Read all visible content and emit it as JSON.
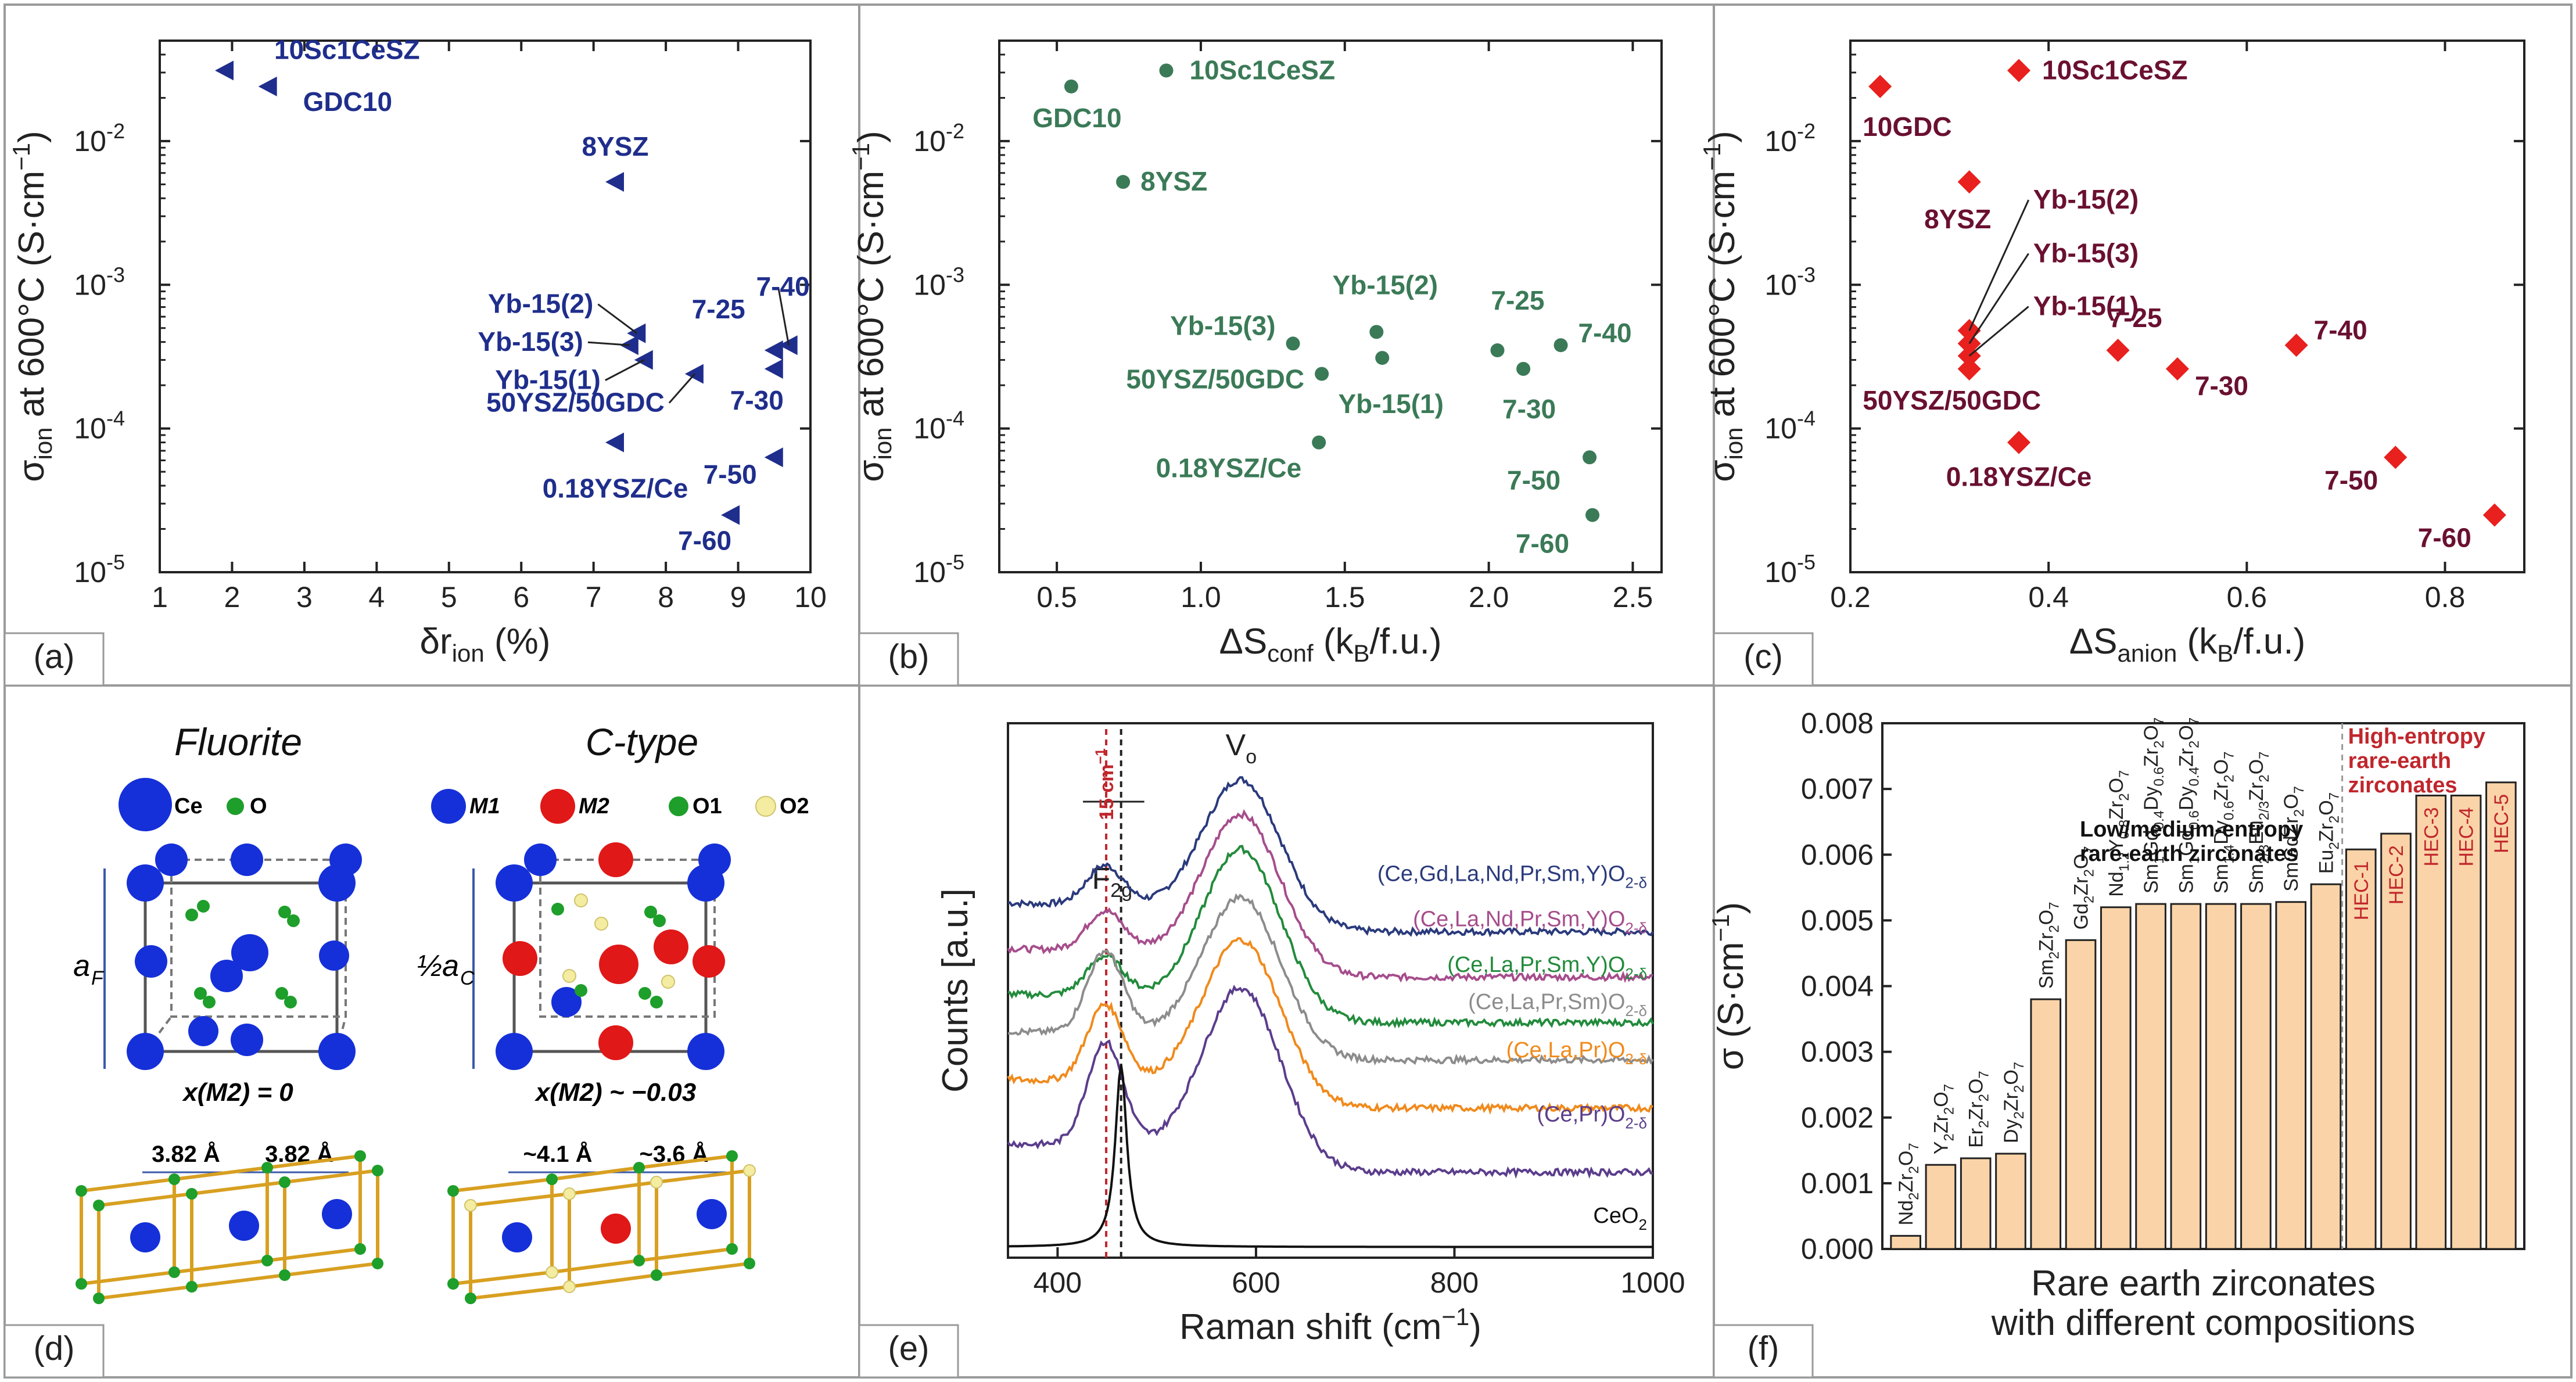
{
  "chart_data": [
    {
      "panel": "(a)",
      "type": "scatter",
      "marker": "triangle-left",
      "color": "#1f2e8c",
      "xlabel": "δr",
      "xlabel_sub": "ion",
      "xlabel_unit": " (%)",
      "ylabel": "σ",
      "ylabel_sub": "ion",
      "ylabel_rest": " at 600°C (S·cm",
      "ylabel_sup": "−1",
      "ylabel_end": ")",
      "xlim": [
        1,
        10
      ],
      "ylim": [
        1e-05,
        0.05
      ],
      "yscale": "log",
      "xticks": [
        "1",
        "2",
        "3",
        "4",
        "5",
        "6",
        "7",
        "8",
        "9",
        "10"
      ],
      "yticks": [
        {
          "base": "10",
          "exp": "-2"
        },
        {
          "base": "10",
          "exp": "-3"
        },
        {
          "base": "10",
          "exp": "-4"
        },
        {
          "base": "10",
          "exp": "-5"
        }
      ],
      "points": [
        {
          "label": "10Sc1CeSZ",
          "x": 1.9,
          "y": 0.031
        },
        {
          "label": "GDC10",
          "x": 2.5,
          "y": 0.024
        },
        {
          "label": "8YSZ",
          "x": 7.3,
          "y": 0.0052
        },
        {
          "label": "Yb-15(2)",
          "x": 7.6,
          "y": 0.00046
        },
        {
          "label": "Yb-15(3)",
          "x": 7.5,
          "y": 0.00038
        },
        {
          "label": "Yb-15(1)",
          "x": 7.7,
          "y": 0.0003
        },
        {
          "label": "50YSZ/50GDC",
          "x": 8.4,
          "y": 0.00024
        },
        {
          "label": "0.18YSZ/Ce",
          "x": 7.3,
          "y": 8e-05
        },
        {
          "label": "7-40",
          "x": 9.7,
          "y": 0.00038
        },
        {
          "label": "7-25",
          "x": 9.5,
          "y": 0.00035
        },
        {
          "label": "7-30",
          "x": 9.5,
          "y": 0.00026
        },
        {
          "label": "7-50",
          "x": 9.5,
          "y": 6.3e-05
        },
        {
          "label": "7-60",
          "x": 8.9,
          "y": 2.5e-05
        }
      ]
    },
    {
      "panel": "(b)",
      "type": "scatter",
      "marker": "circle",
      "color": "#3b7a57",
      "xlabel": "ΔS",
      "xlabel_sub": "conf",
      "xlabel_unit": " (k",
      "xlabel_sub2": "B",
      "xlabel_end": "/f.u.)",
      "ylabel": "σ",
      "ylabel_sub": "ion",
      "ylabel_rest": " at 600°C (S·cm",
      "ylabel_sup": "−1",
      "ylabel_end": ")",
      "xlim": [
        0.3,
        2.6
      ],
      "ylim": [
        1e-05,
        0.05
      ],
      "yscale": "log",
      "xticks": [
        "0.5",
        "1.0",
        "1.5",
        "2.0",
        "2.5"
      ],
      "yticks": [
        {
          "base": "10",
          "exp": "-2"
        },
        {
          "base": "10",
          "exp": "-3"
        },
        {
          "base": "10",
          "exp": "-4"
        },
        {
          "base": "10",
          "exp": "-5"
        }
      ],
      "points": [
        {
          "label": "GDC10",
          "x": 0.55,
          "y": 0.024
        },
        {
          "label": "10Sc1CeSZ",
          "x": 0.88,
          "y": 0.031
        },
        {
          "label": "8YSZ",
          "x": 0.73,
          "y": 0.0052
        },
        {
          "label": "Yb-15(3)",
          "x": 1.32,
          "y": 0.00039
        },
        {
          "label": "Yb-15(2)",
          "x": 1.61,
          "y": 0.00047
        },
        {
          "label": "Yb-15(1)",
          "x": 1.63,
          "y": 0.00031
        },
        {
          "label": "50YSZ/50GDC",
          "x": 1.42,
          "y": 0.00024
        },
        {
          "label": "0.18YSZ/Ce",
          "x": 1.41,
          "y": 8e-05
        },
        {
          "label": "7-25",
          "x": 2.03,
          "y": 0.00035
        },
        {
          "label": "7-40",
          "x": 2.25,
          "y": 0.00038
        },
        {
          "label": "7-30",
          "x": 2.12,
          "y": 0.00026
        },
        {
          "label": "7-50",
          "x": 2.35,
          "y": 6.3e-05
        },
        {
          "label": "7-60",
          "x": 2.36,
          "y": 2.5e-05
        }
      ]
    },
    {
      "panel": "(c)",
      "type": "scatter",
      "marker": "diamond",
      "color": "#e8201e",
      "xlabel": "ΔS",
      "xlabel_sub": "anion",
      "xlabel_unit": " (k",
      "xlabel_sub2": "B",
      "xlabel_end": "/f.u.)",
      "ylabel": "σ",
      "ylabel_sub": "ion",
      "ylabel_rest": " at 600°C (S·cm",
      "ylabel_sup": "−1",
      "ylabel_end": ")",
      "xlim": [
        0.2,
        0.88
      ],
      "ylim": [
        1e-05,
        0.05
      ],
      "yscale": "log",
      "xticks": [
        "0.2",
        "0.4",
        "0.6",
        "0.8"
      ],
      "yticks": [
        {
          "base": "10",
          "exp": "-2"
        },
        {
          "base": "10",
          "exp": "-3"
        },
        {
          "base": "10",
          "exp": "-4"
        },
        {
          "base": "10",
          "exp": "-5"
        }
      ],
      "points": [
        {
          "label": "10GDC",
          "x": 0.23,
          "y": 0.024
        },
        {
          "label": "10Sc1CeSZ",
          "x": 0.37,
          "y": 0.031
        },
        {
          "label": "8YSZ",
          "x": 0.32,
          "y": 0.0052
        },
        {
          "label": "Yb-15(2)",
          "x": 0.32,
          "y": 0.00048
        },
        {
          "label": "Yb-15(3)",
          "x": 0.32,
          "y": 0.00039
        },
        {
          "label": "Yb-15(1)",
          "x": 0.32,
          "y": 0.00032
        },
        {
          "label": "50YSZ/50GDC",
          "x": 0.32,
          "y": 0.00026
        },
        {
          "label": "0.18YSZ/Ce",
          "x": 0.37,
          "y": 8e-05
        },
        {
          "label": "7-25",
          "x": 0.47,
          "y": 0.00035
        },
        {
          "label": "7-30",
          "x": 0.53,
          "y": 0.00026
        },
        {
          "label": "7-40",
          "x": 0.65,
          "y": 0.00038
        },
        {
          "label": "7-50",
          "x": 0.75,
          "y": 6.3e-05
        },
        {
          "label": "7-60",
          "x": 0.85,
          "y": 2.5e-05
        }
      ]
    },
    {
      "panel": "(e)",
      "type": "line",
      "xlabel": "Raman shift (cm",
      "xlabel_sup": "−1",
      "xlabel_end": ")",
      "ylabel": "Counts [a.u.]",
      "xlim": [
        350,
        1000
      ],
      "xticks": [
        "400",
        "600",
        "800",
        "1000"
      ],
      "peak_labels": {
        "vo": "V",
        "vo_sub": "o",
        "f2g": "F",
        "f2g_sub": "2g",
        "shift": "15 cm",
        "shift_sup": "−1"
      },
      "markers_x": [
        449,
        464
      ],
      "series": [
        {
          "name": "(Ce,Gd,La,Nd,Pr,Sm,Y)O",
          "sub": "2-δ",
          "color": "#2a3a7c",
          "offset": 0.66,
          "amp": 0.28,
          "f2g": 0.07
        },
        {
          "name": "(Ce,La,Nd,Pr,Sm,Y)O",
          "sub": "2-δ",
          "color": "#a64d8c",
          "offset": 0.575,
          "amp": 0.3,
          "f2g": 0.07
        },
        {
          "name": "(Ce,La,Pr,Sm,Y)O",
          "sub": "2-δ",
          "color": "#228b3c",
          "offset": 0.49,
          "amp": 0.32,
          "f2g": 0.07
        },
        {
          "name": "(Ce,La,Pr,Sm)O",
          "sub": "2-δ",
          "color": "#8c8c8c",
          "offset": 0.42,
          "amp": 0.3,
          "f2g": 0.15
        },
        {
          "name": "(Ce,La,Pr)O",
          "sub": "2-δ",
          "color": "#f08a1c",
          "offset": 0.33,
          "amp": 0.31,
          "f2g": 0.14
        },
        {
          "name": "(Ce,Pr)O",
          "sub": "2-δ",
          "color": "#5b3d8c",
          "offset": 0.21,
          "amp": 0.34,
          "f2g": 0.19
        },
        {
          "name": "CeO",
          "sub": "2",
          "color": "#111111",
          "offset": 0.02,
          "amp": 0.0,
          "f2g": 0.55
        }
      ]
    },
    {
      "panel": "(f)",
      "type": "bar",
      "ylabel": "σ (S·cm",
      "ylabel_sup": "−1",
      "ylabel_end": ")",
      "xlabel_lines": [
        "Rare earth zirconates",
        "with different compositions"
      ],
      "ylim": [
        0,
        0.008
      ],
      "yticks": [
        "0.000",
        "0.001",
        "0.002",
        "0.003",
        "0.004",
        "0.005",
        "0.006",
        "0.007",
        "0.008"
      ],
      "group_low": [
        "Low/medium-entropy",
        "rare-earth zirconates"
      ],
      "group_high": [
        "High-entropy",
        "rare-earth",
        "zirconates"
      ],
      "bar_color": "#fad4a8",
      "bars": [
        {
          "parts": [
            [
              "Nd",
              ""
            ],
            [
              "2",
              true
            ],
            [
              "Zr",
              ""
            ],
            [
              "2",
              true
            ],
            [
              "O",
              ""
            ],
            [
              "7",
              true
            ]
          ],
          "value": 0.0002,
          "high": false
        },
        {
          "parts": [
            [
              "Y",
              ""
            ],
            [
              "2",
              true
            ],
            [
              "Zr",
              ""
            ],
            [
              "2",
              true
            ],
            [
              "O",
              ""
            ],
            [
              "7",
              true
            ]
          ],
          "value": 0.00128,
          "high": false
        },
        {
          "parts": [
            [
              "Er",
              ""
            ],
            [
              "2",
              true
            ],
            [
              "Zr",
              ""
            ],
            [
              "2",
              true
            ],
            [
              "O",
              ""
            ],
            [
              "7",
              true
            ]
          ],
          "value": 0.00138,
          "high": false
        },
        {
          "parts": [
            [
              "Dy",
              ""
            ],
            [
              "2",
              true
            ],
            [
              "Zr",
              ""
            ],
            [
              "2",
              true
            ],
            [
              "O",
              ""
            ],
            [
              "7",
              true
            ]
          ],
          "value": 0.00145,
          "high": false
        },
        {
          "parts": [
            [
              "Sm",
              ""
            ],
            [
              "2",
              true
            ],
            [
              "Zr",
              ""
            ],
            [
              "2",
              true
            ],
            [
              "O",
              ""
            ],
            [
              "7",
              true
            ]
          ],
          "value": 0.0038,
          "high": false
        },
        {
          "parts": [
            [
              "Gd",
              ""
            ],
            [
              "2",
              true
            ],
            [
              "Zr",
              ""
            ],
            [
              "2",
              true
            ],
            [
              "O",
              ""
            ],
            [
              "7",
              true
            ]
          ],
          "value": 0.0047,
          "high": false
        },
        {
          "parts": [
            [
              "Nd",
              ""
            ],
            [
              "1.2",
              true
            ],
            [
              "Y",
              ""
            ],
            [
              "0.8",
              true
            ],
            [
              "Zr",
              ""
            ],
            [
              "2",
              true
            ],
            [
              "O",
              ""
            ],
            [
              "7",
              true
            ]
          ],
          "value": 0.0052,
          "high": false
        },
        {
          "parts": [
            [
              "Sm",
              ""
            ],
            [
              "1",
              true
            ],
            [
              "Gd",
              ""
            ],
            [
              "0.4",
              true
            ],
            [
              "Dy",
              ""
            ],
            [
              "0.6",
              true
            ],
            [
              "Zr",
              ""
            ],
            [
              "2",
              true
            ],
            [
              "O",
              ""
            ],
            [
              "7",
              true
            ]
          ],
          "value": 0.00525,
          "high": false
        },
        {
          "parts": [
            [
              "Sm",
              ""
            ],
            [
              "1",
              true
            ],
            [
              "Gd",
              ""
            ],
            [
              "0.6",
              true
            ],
            [
              "Dy",
              ""
            ],
            [
              "0.4",
              true
            ],
            [
              "Zr",
              ""
            ],
            [
              "2",
              true
            ],
            [
              "O",
              ""
            ],
            [
              "7",
              true
            ]
          ],
          "value": 0.00525,
          "high": false
        },
        {
          "parts": [
            [
              "Sm",
              ""
            ],
            [
              "1.4",
              true
            ],
            [
              "Dy",
              ""
            ],
            [
              "0.6",
              true
            ],
            [
              "Zr",
              ""
            ],
            [
              "2",
              true
            ],
            [
              "O",
              ""
            ],
            [
              "7",
              true
            ]
          ],
          "value": 0.00525,
          "high": false
        },
        {
          "parts": [
            [
              "Sm",
              ""
            ],
            [
              "2/3",
              true
            ],
            [
              "Eu",
              ""
            ],
            [
              "2/3",
              true
            ],
            [
              "Zr",
              ""
            ],
            [
              "2",
              true
            ],
            [
              "O",
              ""
            ],
            [
              "7",
              true
            ]
          ],
          "value": 0.00525,
          "high": false
        },
        {
          "parts": [
            [
              "SmGdZr",
              ""
            ],
            [
              "2",
              true
            ],
            [
              "O",
              ""
            ],
            [
              "7",
              true
            ]
          ],
          "value": 0.00528,
          "high": false
        },
        {
          "parts": [
            [
              "Eu",
              ""
            ],
            [
              "2",
              true
            ],
            [
              "Zr",
              ""
            ],
            [
              "2",
              true
            ],
            [
              "O",
              ""
            ],
            [
              "7",
              true
            ]
          ],
          "value": 0.00555,
          "high": false
        },
        {
          "parts": [
            [
              "HEC-1",
              ""
            ]
          ],
          "value": 0.00608,
          "high": true
        },
        {
          "parts": [
            [
              "HEC-2",
              ""
            ]
          ],
          "value": 0.00632,
          "high": true
        },
        {
          "parts": [
            [
              "HEC-3",
              ""
            ]
          ],
          "value": 0.0069,
          "high": true
        },
        {
          "parts": [
            [
              "HEC-4",
              ""
            ]
          ],
          "value": 0.0069,
          "high": true
        },
        {
          "parts": [
            [
              "HEC-5",
              ""
            ]
          ],
          "value": 0.0071,
          "high": true
        }
      ]
    }
  ],
  "panel_d": {
    "panel": "(d)",
    "fluorite_title": "Fluorite",
    "ctype_title": "C-type",
    "legend_ce": "Ce",
    "legend_o": "O",
    "legend_m1": "M1",
    "legend_m2": "M2",
    "legend_o1": "O1",
    "legend_o2": "O2",
    "axis_f": "a",
    "axis_f_sub": "F",
    "axis_c": "½a",
    "axis_c_sub": "C",
    "param_f": "x(M2) = 0",
    "param_c": "x(M2) ~ −0.03",
    "dist_f1": "3.82 Å",
    "dist_f2": "3.82 Å",
    "dist_c1": "~4.1 Å",
    "dist_c2": "~3.6 Å",
    "colors": {
      "ce": "#1530d8",
      "o": "#1e9e2a",
      "m2": "#e01818",
      "o2": "#f4eca0",
      "bond": "#d8a021"
    }
  }
}
